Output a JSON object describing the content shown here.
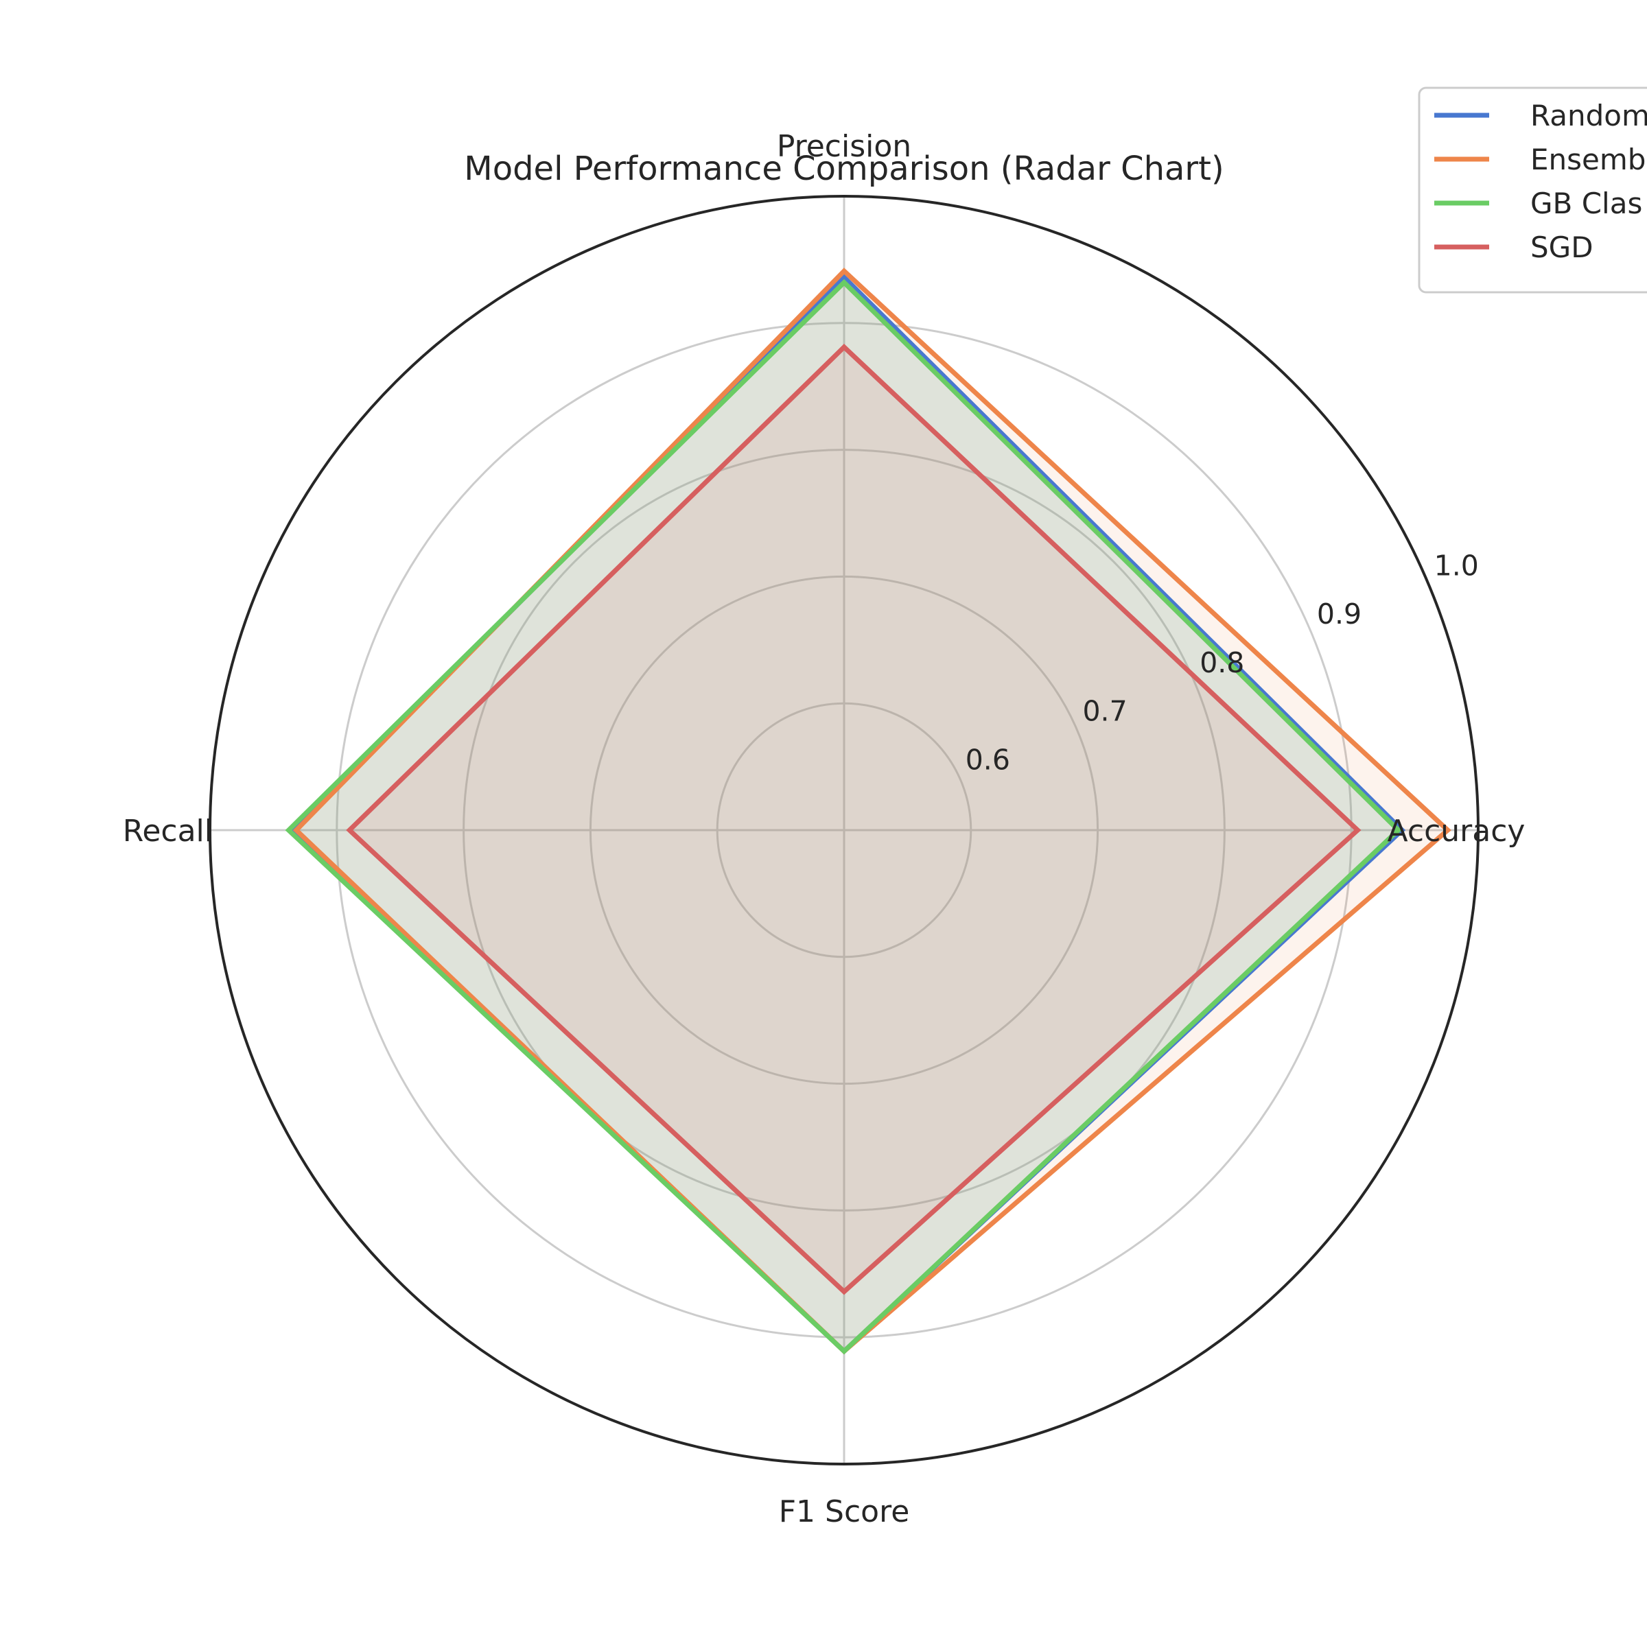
{
  "chart_data": {
    "type": "radar",
    "title": "Model Performance Comparison (Radar Chart)",
    "axes": [
      "Accuracy",
      "Precision",
      "Recall",
      "F1 Score"
    ],
    "radial_range": [
      0.5,
      1.0
    ],
    "radial_ticks": [
      0.6,
      0.7,
      0.8,
      0.9,
      1.0
    ],
    "radial_tick_labels": [
      "0.6",
      "0.7",
      "0.8",
      "0.9",
      "1.0"
    ],
    "grid": true,
    "legend_position": "top-right",
    "series": [
      {
        "name": "Random",
        "color": "#4878d0",
        "values": [
          0.94,
          0.936,
          0.935,
          0.911
        ]
      },
      {
        "name": "Ensemb",
        "color": "#ee854a",
        "values": [
          0.976,
          0.941,
          0.932,
          0.911
        ]
      },
      {
        "name": "GB Clas",
        "color": "#6acc64",
        "values": [
          0.937,
          0.932,
          0.938,
          0.911
        ]
      },
      {
        "name": "SGD",
        "color": "#d65f5f",
        "values": [
          0.905,
          0.881,
          0.89,
          0.864
        ]
      }
    ]
  }
}
